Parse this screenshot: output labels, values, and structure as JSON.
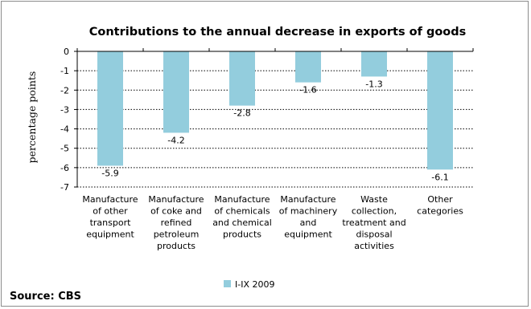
{
  "chart_data": {
    "type": "bar",
    "title": "Contributions to the annual decrease in exports of goods",
    "ylabel": "percentage points",
    "xlabel": "",
    "ylim": [
      -7,
      0
    ],
    "yticks": [
      0,
      -1,
      -2,
      -3,
      -4,
      -5,
      -6,
      -7
    ],
    "grid": "horizontal dotted",
    "legend_position": "bottom",
    "categories": [
      [
        "Manufacture",
        "of other",
        "transport",
        "equipment"
      ],
      [
        "Manufacture",
        "of coke and",
        "refined",
        "petroleum",
        "products"
      ],
      [
        "Manufacture",
        "of chemicals",
        "and chemical",
        "products"
      ],
      [
        "Manufacture",
        "of machinery",
        "and",
        "equipment"
      ],
      [
        "Waste",
        "collection,",
        "treatment and",
        "disposal",
        "activities"
      ],
      [
        "Other",
        "categories"
      ]
    ],
    "series": [
      {
        "name": "I-IX 2009",
        "color": "#93cddd",
        "values": [
          -5.9,
          -4.2,
          -2.8,
          -1.6,
          -1.3,
          -6.1
        ],
        "labels": [
          "-5.9",
          "-4.2",
          "-2.8",
          "-1.6",
          "-1.3",
          "-6.1"
        ]
      }
    ]
  },
  "source": "Source: CBS"
}
